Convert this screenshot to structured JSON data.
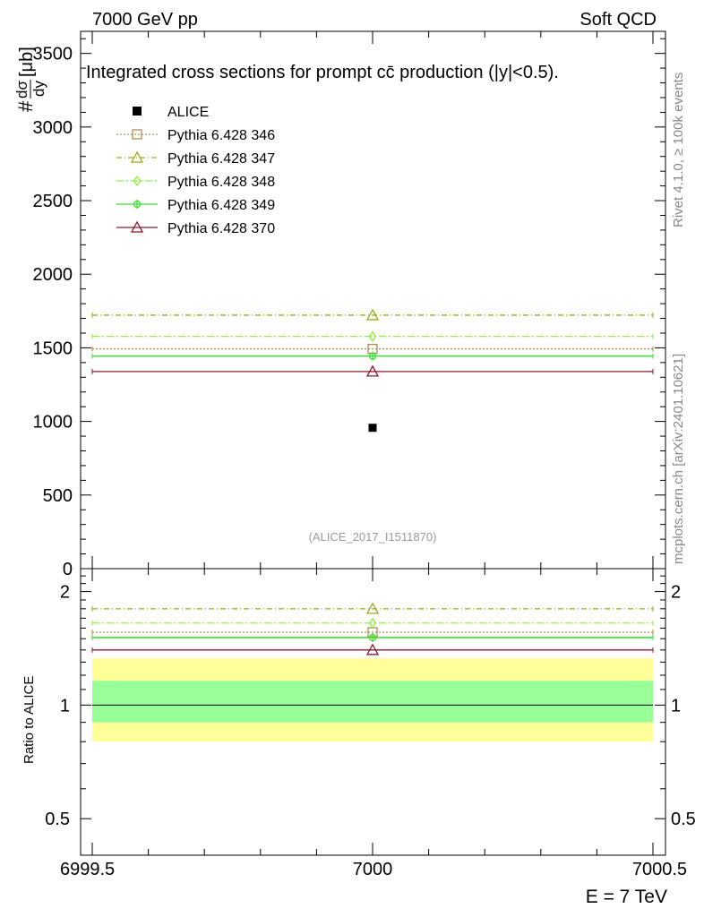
{
  "header": {
    "left": "7000 GeV pp",
    "right": "Soft QCD"
  },
  "side_labels": {
    "rivet": "Rivet 4.1.0, ≥ 100k events",
    "mcplots": "mcplots.cern.ch [arXiv:2401.10621]"
  },
  "colors": {
    "alice": "#000000",
    "p346": "#b08d57",
    "p347": "#9aaa1e",
    "p348": "#8ff03a",
    "p349": "#3ae32e",
    "p370": "#8b1a2e",
    "band_inner": "#99ff99",
    "band_outer": "#ffff99"
  },
  "chart_data": [
    {
      "type": "scatter",
      "title": "Integrated cross sections for prompt cc̄ production (|y|<0.5).",
      "ylabel_prefix": "#",
      "ylabel_num": "dσ",
      "ylabel_den": "dy",
      "ylabel_unit": "[μb]",
      "watermark": "(ALICE_2017_I1511870)",
      "xlim": [
        6999.5,
        7000.5
      ],
      "ylim": [
        0,
        3650
      ],
      "yticks": [
        {
          "v": 0,
          "label": "0"
        },
        {
          "v": 500,
          "label": "500"
        },
        {
          "v": 1000,
          "label": "1000"
        },
        {
          "v": 1500,
          "label": "1500"
        },
        {
          "v": 2000,
          "label": "2000"
        },
        {
          "v": 2500,
          "label": "2500"
        },
        {
          "v": 3000,
          "label": "3000"
        },
        {
          "v": 3500,
          "label": "3500"
        }
      ],
      "legend_position": "top-left",
      "data": {
        "label": "ALICE",
        "x": 7000,
        "y": 957
      },
      "series": [
        {
          "key": "p346",
          "label": "Pythia 6.428 346",
          "marker": "square",
          "dash": "2,2",
          "y": 1493
        },
        {
          "key": "p347",
          "label": "Pythia 6.428 347",
          "marker": "triangle",
          "dash": "6,3,1,3",
          "y": 1722
        },
        {
          "key": "p348",
          "label": "Pythia 6.428 348",
          "marker": "diamond",
          "dash": "8,3,2,3",
          "y": 1578
        },
        {
          "key": "p349",
          "label": "Pythia 6.428 349",
          "marker": "cross",
          "dash": "",
          "y": 1444
        },
        {
          "key": "p370",
          "label": "Pythia 6.428 370",
          "marker": "triangle",
          "dash": "",
          "y": 1339
        }
      ]
    },
    {
      "type": "line",
      "ylabel": "Ratio to ALICE",
      "xlabel": "E = 7 TeV",
      "xlim": [
        6999.5,
        7000.5
      ],
      "ylim": [
        0.4,
        2.3
      ],
      "yticks": [
        {
          "v": 0.5,
          "label": "0.5"
        },
        {
          "v": 1,
          "label": "1"
        },
        {
          "v": 2,
          "label": "2"
        }
      ],
      "xticks": [
        {
          "v": 6999.5,
          "label": "6999.5"
        },
        {
          "v": 7000,
          "label": "7000"
        },
        {
          "v": 7000.5,
          "label": "7000.5"
        }
      ],
      "band_outer": [
        0.8,
        1.33
      ],
      "band_inner": [
        0.9,
        1.16
      ],
      "series": [
        {
          "key": "p346",
          "y": 1.56
        },
        {
          "key": "p347",
          "y": 1.8
        },
        {
          "key": "p348",
          "y": 1.65
        },
        {
          "key": "p349",
          "y": 1.51
        },
        {
          "key": "p370",
          "y": 1.4
        }
      ]
    }
  ]
}
